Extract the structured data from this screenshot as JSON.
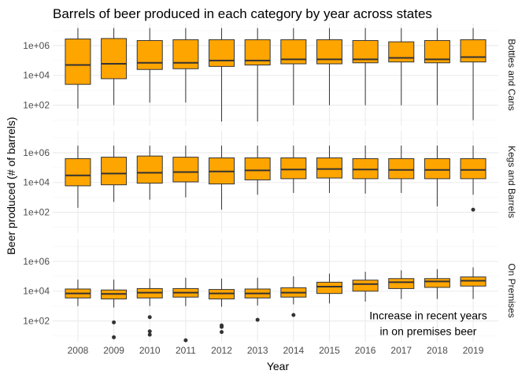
{
  "chart_data": {
    "type": "box",
    "title": "Barrels of beer produced in each category by year across states",
    "xlabel": "Year",
    "ylabel": "Beer produced (# of barrels)",
    "y_scale": "log10",
    "ylim": [
      4,
      30000000
    ],
    "y_ticks": [
      100,
      10000,
      1000000
    ],
    "y_tick_labels": [
      "1e+02",
      "1e+04",
      "1e+06"
    ],
    "categories": [
      "2008",
      "2009",
      "2010",
      "2011",
      "2012",
      "2013",
      "2014",
      "2015",
      "2016",
      "2017",
      "2018",
      "2019"
    ],
    "box_fill": "#FFA500",
    "box_stroke": "#333333",
    "outlier_color": "#333333",
    "grid": true,
    "panels": [
      {
        "label": "Bottles and Cans",
        "boxes": [
          {
            "low": 60,
            "q1": 2500,
            "median": 50000,
            "q3": 2800000,
            "high": 15000000,
            "outliers": []
          },
          {
            "low": 100,
            "q1": 6000,
            "median": 60000,
            "q3": 3000000,
            "high": 15000000,
            "outliers": []
          },
          {
            "low": 150,
            "q1": 25000,
            "median": 70000,
            "q3": 2200000,
            "high": 15000000,
            "outliers": []
          },
          {
            "low": 150,
            "q1": 28000,
            "median": 70000,
            "q3": 2500000,
            "high": 15000000,
            "outliers": []
          },
          {
            "low": 8,
            "q1": 40000,
            "median": 100000,
            "q3": 2500000,
            "high": 15000000,
            "outliers": []
          },
          {
            "low": 8,
            "q1": 50000,
            "median": 100000,
            "q3": 2500000,
            "high": 15000000,
            "outliers": []
          },
          {
            "low": 100,
            "q1": 60000,
            "median": 120000,
            "q3": 2500000,
            "high": 15000000,
            "outliers": []
          },
          {
            "low": 100,
            "q1": 60000,
            "median": 120000,
            "q3": 2500000,
            "high": 15000000,
            "outliers": []
          },
          {
            "low": 100,
            "q1": 70000,
            "median": 120000,
            "q3": 2200000,
            "high": 15000000,
            "outliers": []
          },
          {
            "low": 100,
            "q1": 80000,
            "median": 150000,
            "q3": 1800000,
            "high": 15000000,
            "outliers": []
          },
          {
            "low": 100,
            "q1": 70000,
            "median": 120000,
            "q3": 2200000,
            "high": 15000000,
            "outliers": []
          },
          {
            "low": 10,
            "q1": 80000,
            "median": 170000,
            "q3": 2500000,
            "high": 15000000,
            "outliers": []
          }
        ]
      },
      {
        "label": "Kegs and Barrels",
        "boxes": [
          {
            "low": 200,
            "q1": 6000,
            "median": 30000,
            "q3": 400000,
            "high": 3000000,
            "outliers": []
          },
          {
            "low": 500,
            "q1": 7000,
            "median": 40000,
            "q3": 500000,
            "high": 3000000,
            "outliers": []
          },
          {
            "low": 700,
            "q1": 9000,
            "median": 45000,
            "q3": 600000,
            "high": 3000000,
            "outliers": []
          },
          {
            "low": 1000,
            "q1": 11000,
            "median": 50000,
            "q3": 500000,
            "high": 3000000,
            "outliers": []
          },
          {
            "low": 150,
            "q1": 8000,
            "median": 55000,
            "q3": 450000,
            "high": 3000000,
            "outliers": []
          },
          {
            "low": 1500,
            "q1": 15000,
            "median": 65000,
            "q3": 450000,
            "high": 3000000,
            "outliers": []
          },
          {
            "low": 2000,
            "q1": 18000,
            "median": 75000,
            "q3": 450000,
            "high": 3000000,
            "outliers": []
          },
          {
            "low": 2000,
            "q1": 20000,
            "median": 80000,
            "q3": 450000,
            "high": 3000000,
            "outliers": []
          },
          {
            "low": 1800,
            "q1": 18000,
            "median": 75000,
            "q3": 400000,
            "high": 3000000,
            "outliers": []
          },
          {
            "low": 2000,
            "q1": 18000,
            "median": 70000,
            "q3": 400000,
            "high": 3000000,
            "outliers": []
          },
          {
            "low": 250,
            "q1": 18000,
            "median": 70000,
            "q3": 400000,
            "high": 3000000,
            "outliers": []
          },
          {
            "low": 1500,
            "q1": 18000,
            "median": 70000,
            "q3": 400000,
            "high": 3000000,
            "outliers": [
              150
            ]
          }
        ]
      },
      {
        "label": "On Premises",
        "boxes": [
          {
            "low": 1000,
            "q1": 3500,
            "median": 7000,
            "q3": 14000,
            "high": 60000,
            "outliers": []
          },
          {
            "low": 800,
            "q1": 3000,
            "median": 6500,
            "q3": 12000,
            "high": 60000,
            "outliers": [
              80,
              8
            ]
          },
          {
            "low": 1000,
            "q1": 3500,
            "median": 8000,
            "q3": 15000,
            "high": 70000,
            "outliers": [
              180,
              20,
              12
            ]
          },
          {
            "low": 1000,
            "q1": 4000,
            "median": 8000,
            "q3": 15000,
            "high": 80000,
            "outliers": [
              5
            ]
          },
          {
            "low": 900,
            "q1": 3000,
            "median": 7000,
            "q3": 13000,
            "high": 70000,
            "outliers": [
              50,
              40,
              18
            ]
          },
          {
            "low": 1100,
            "q1": 3500,
            "median": 7000,
            "q3": 14000,
            "high": 80000,
            "outliers": [
              120
            ]
          },
          {
            "low": 1300,
            "q1": 4000,
            "median": 8000,
            "q3": 17000,
            "high": 100000,
            "outliers": [
              250
            ]
          },
          {
            "low": 1500,
            "q1": 7000,
            "median": 20000,
            "q3": 40000,
            "high": 150000,
            "outliers": []
          },
          {
            "low": 2000,
            "q1": 10000,
            "median": 30000,
            "q3": 55000,
            "high": 200000,
            "outliers": []
          },
          {
            "low": 3000,
            "q1": 15000,
            "median": 40000,
            "q3": 70000,
            "high": 250000,
            "outliers": []
          },
          {
            "low": 3000,
            "q1": 18000,
            "median": 45000,
            "q3": 70000,
            "high": 300000,
            "outliers": []
          },
          {
            "low": 3000,
            "q1": 22000,
            "median": 50000,
            "q3": 90000,
            "high": 400000,
            "outliers": []
          }
        ]
      }
    ],
    "annotation": {
      "panel": 2,
      "lines": [
        "Increase in recent years",
        "in on premises beer"
      ],
      "x": 2017.75,
      "y": 100
    }
  }
}
